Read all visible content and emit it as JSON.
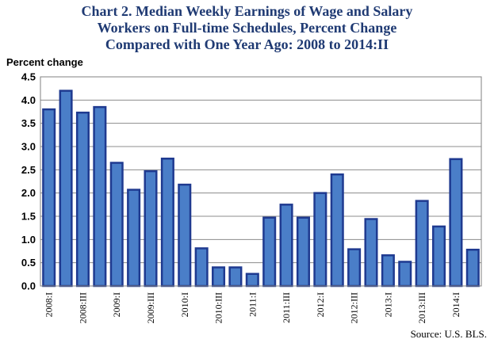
{
  "title_lines": [
    "Chart 2. Median Weekly Earnings of Wage and Salary",
    "Workers on Full-time Schedules, Percent Change",
    "Compared  with One Year Ago: 2008 to 2014:II"
  ],
  "source": "Source:  U.S. BLS.",
  "chart_data": {
    "type": "bar",
    "title": "Chart 2. Median Weekly Earnings of Wage and Salary Workers on Full-time Schedules, Percent Change Compared  with One Year Ago: 2008 to 2014:II",
    "ylabel": "Percent change",
    "xlabel": "",
    "ylim": [
      0,
      4.5
    ],
    "yticks": [
      "0.0",
      "0.5",
      "1.0",
      "1.5",
      "2.0",
      "2.5",
      "3.0",
      "3.5",
      "4.0",
      "4.5"
    ],
    "grid": true,
    "categories": [
      "2008:I",
      "2008:II",
      "2008:III",
      "2008:IV",
      "2009:I",
      "2009:II",
      "2009:III",
      "2009:IV",
      "2010:I",
      "2010:II",
      "2010:III",
      "2010:IV",
      "2011:I",
      "2011:II",
      "2011:III",
      "2011:IV",
      "2012:I",
      "2012:II",
      "2012:III",
      "2012:IV",
      "2013:I",
      "2013:II",
      "2013:III",
      "2013:IV",
      "2014:I",
      "2014:II"
    ],
    "shown_category_labels": [
      "2008:I",
      "2008:III",
      "2009:I",
      "2009:III",
      "2010:I",
      "2010:III",
      "2011:I",
      "2011:III",
      "2012:I",
      "2012:III",
      "2013:I",
      "2013:III",
      "2014:I"
    ],
    "values": [
      3.8,
      4.2,
      3.73,
      3.85,
      2.65,
      2.07,
      2.47,
      2.74,
      2.18,
      0.81,
      0.4,
      0.4,
      0.26,
      1.47,
      1.75,
      1.47,
      2.0,
      2.4,
      0.79,
      1.44,
      0.66,
      0.52,
      1.83,
      1.28,
      2.73,
      0.78
    ],
    "bar_fill": "#4a7ec8",
    "bar_stroke": "#1f3a90"
  }
}
